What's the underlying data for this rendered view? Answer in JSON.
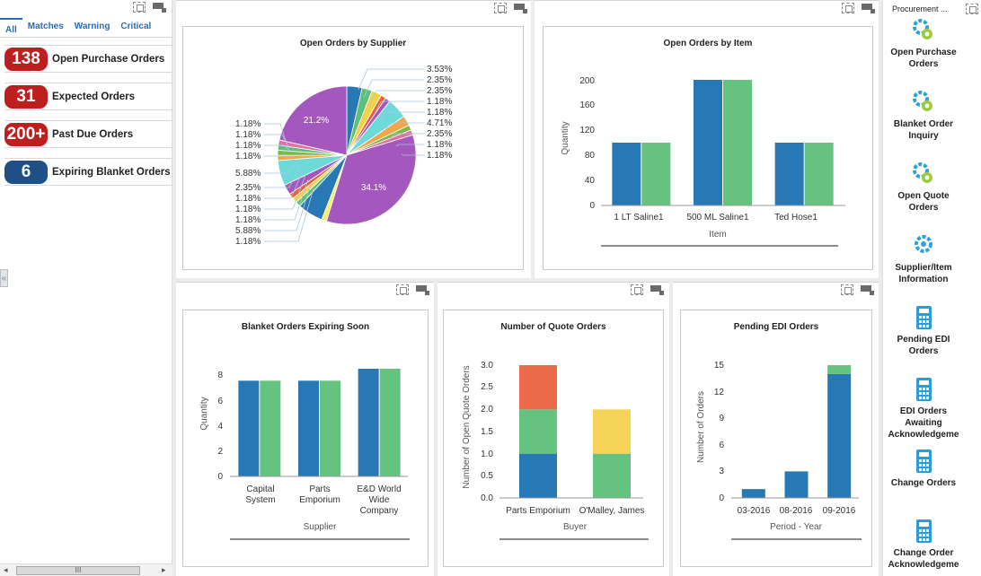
{
  "left_panel": {
    "tabs": [
      {
        "label": "All"
      },
      {
        "label": "Matches"
      },
      {
        "label": "Warning"
      },
      {
        "label": "Critical"
      }
    ],
    "kpis": [
      {
        "value": "138",
        "label": "Open Purchase Orders",
        "color": "#bd1f1f"
      },
      {
        "value": "31",
        "label": "Expected Orders",
        "color": "#bd1f1f"
      },
      {
        "value": "200+",
        "label": "Past Due Orders",
        "color": "#bd1f1f"
      },
      {
        "value": "6",
        "label": "Expiring Blanket Orders",
        "color": "#1e4f86"
      }
    ],
    "collapse_glyph": "«",
    "scroll_thumb": "III"
  },
  "charts": {
    "supplier": {
      "title": "Open Orders by Supplier",
      "inner_labels": [
        "21.2%",
        "34.1%"
      ],
      "right_labels": [
        "3.53%",
        "2.35%",
        "2.35%",
        "1.18%",
        "1.18%",
        "4.71%",
        "2.35%",
        "1.18%",
        "1.18%"
      ],
      "left_labels": [
        "1.18%",
        "1.18%",
        "1.18%",
        "1.18%",
        "5.88%",
        "2.35%",
        "1.18%",
        "1.18%",
        "1.18%",
        "5.88%",
        "1.18%"
      ]
    },
    "item": {
      "title": "Open Orders by Item",
      "ylabel": "Quantity",
      "xlabel": "Item",
      "yticks": [
        "0",
        "40",
        "80",
        "120",
        "160",
        "200"
      ],
      "categories": [
        "1 LT Saline1",
        "500 ML Saline1",
        "Ted Hose1"
      ]
    },
    "blanket": {
      "title": "Blanket Orders Expiring Soon",
      "ylabel": "Quantity",
      "xlabel": "Supplier",
      "yticks": [
        "0",
        "2",
        "4",
        "6",
        "8"
      ],
      "categories": [
        [
          "Capital",
          "System"
        ],
        [
          "Parts",
          "Emporium"
        ],
        [
          "E&D World",
          "Wide",
          "Company"
        ]
      ]
    },
    "quote": {
      "title": "Number of Quote Orders",
      "ylabel": "Number of Open Quote Orders",
      "xlabel": "Buyer",
      "yticks": [
        "0.0",
        "0.5",
        "1.0",
        "1.5",
        "2.0",
        "2.5",
        "3.0"
      ],
      "categories": [
        "Parts Emporium",
        "O'Malley, James"
      ]
    },
    "edi": {
      "title": "Pending EDI Orders",
      "ylabel": "Number of Orders",
      "xlabel": "Period - Year",
      "yticks": [
        "0",
        "3",
        "6",
        "9",
        "12",
        "15"
      ],
      "categories": [
        "03-2016",
        "08-2016",
        "09-2016"
      ]
    }
  },
  "chart_data": [
    {
      "type": "pie",
      "title": "Open Orders by Supplier",
      "values": [
        3.53,
        2.35,
        2.35,
        1.18,
        1.18,
        4.71,
        2.35,
        1.18,
        1.18,
        34.1,
        1.18,
        5.88,
        1.18,
        1.18,
        1.18,
        2.35,
        5.88,
        1.18,
        1.18,
        1.18,
        1.18,
        21.2
      ],
      "colors": [
        "#2878b5",
        "#5cbf7a",
        "#f2d247",
        "#e8603c",
        "#a457bd",
        "#6dd9d9",
        "#f2a64a",
        "#7db84a",
        "#e36fa8",
        "#a457bd",
        "#f7ee6a",
        "#2878b5",
        "#5cbf7a",
        "#f2d247",
        "#e8603c",
        "#a457bd",
        "#6dd9d9",
        "#f2a64a",
        "#7db84a",
        "#5cbf7a",
        "#e36fa8",
        "#a457bd"
      ]
    },
    {
      "type": "bar",
      "title": "Open Orders by Item",
      "categories": [
        "1 LT Saline1",
        "500 ML Saline1",
        "Ted Hose1"
      ],
      "series": [
        {
          "values": [
            100,
            200,
            100
          ],
          "color": "#2878b5"
        },
        {
          "values": [
            100,
            200,
            100
          ],
          "color": "#66c27f"
        }
      ],
      "xlabel": "Item",
      "ylabel": "Quantity",
      "ylim": [
        0,
        200
      ]
    },
    {
      "type": "bar",
      "title": "Blanket Orders Expiring Soon",
      "categories": [
        "Capital System",
        "Parts Emporium",
        "E&D World Wide Company"
      ],
      "series": [
        {
          "values": [
            8,
            8,
            9
          ],
          "color": "#2878b5"
        },
        {
          "values": [
            8,
            8,
            9
          ],
          "color": "#66c27f"
        }
      ],
      "xlabel": "Supplier",
      "ylabel": "Quantity",
      "ylim": [
        0,
        9
      ]
    },
    {
      "type": "bar",
      "stacked": true,
      "title": "Number of Quote Orders",
      "categories": [
        "Parts Emporium",
        "O'Malley, James"
      ],
      "series": [
        {
          "values": [
            1,
            0
          ],
          "color": "#2878b5"
        },
        {
          "values": [
            1,
            1
          ],
          "color": "#66c27f"
        },
        {
          "values": [
            1,
            0
          ],
          "color": "#ea6a4a"
        },
        {
          "values": [
            0,
            1
          ],
          "color": "#f5d457"
        }
      ],
      "xlabel": "Buyer",
      "ylabel": "Number of Open Quote Orders",
      "ylim": [
        0,
        3
      ]
    },
    {
      "type": "bar",
      "stacked": true,
      "title": "Pending EDI Orders",
      "categories": [
        "03-2016",
        "08-2016",
        "09-2016"
      ],
      "series": [
        {
          "values": [
            1,
            3,
            14
          ],
          "color": "#2878b5"
        },
        {
          "values": [
            0,
            0,
            1
          ],
          "color": "#66c27f"
        }
      ],
      "xlabel": "Period - Year",
      "ylabel": "Number of Orders",
      "ylim": [
        0,
        15
      ]
    }
  ],
  "right_panel": {
    "title": "Procurement ...",
    "items": [
      {
        "label": "Open Purchase\nOrders",
        "icon": "gears-icon"
      },
      {
        "label": "Blanket Order\nInquiry",
        "icon": "gears-icon"
      },
      {
        "label": "Open Quote\nOrders",
        "icon": "gears-icon"
      },
      {
        "label": "Supplier/Item\nInformation",
        "icon": "gear-icon"
      },
      {
        "label": "Pending EDI\nOrders",
        "icon": "calculator-icon"
      },
      {
        "label": "EDI Orders\nAwaiting\nAcknowledgeme",
        "icon": "calculator-icon"
      },
      {
        "label": "Change Orders",
        "icon": "calculator-icon"
      },
      {
        "label": "Change Order\nAcknowledgeme",
        "icon": "calculator-icon"
      }
    ]
  }
}
